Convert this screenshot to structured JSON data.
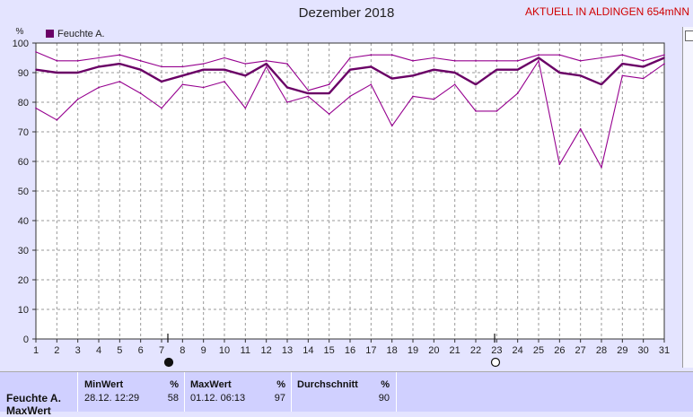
{
  "header": {
    "title": "Dezember 2018",
    "stamp": "AKTUELL IN ALDINGEN 654mNN"
  },
  "chart_data": {
    "type": "line",
    "title": "Dezember 2018",
    "ylabel": "%",
    "ylim": [
      0,
      100
    ],
    "yticks": [
      0,
      10,
      20,
      30,
      40,
      50,
      60,
      70,
      80,
      90,
      100
    ],
    "x": [
      1,
      2,
      3,
      4,
      5,
      6,
      7,
      8,
      9,
      10,
      11,
      12,
      13,
      14,
      15,
      16,
      17,
      18,
      19,
      20,
      21,
      22,
      23,
      24,
      25,
      26,
      27,
      28,
      29,
      30,
      31
    ],
    "xlim": [
      1,
      31
    ],
    "legend": {
      "label": "Feuchte A.",
      "color": "#6a0066",
      "position": "top-left"
    },
    "grid": true,
    "series": [
      {
        "name": "Feuchte A.",
        "kind": "mean",
        "color": "#6a0066",
        "values": [
          91,
          90,
          90,
          92,
          93,
          91,
          87,
          89,
          91,
          91,
          89,
          93,
          85,
          83,
          83,
          91,
          92,
          88,
          89,
          91,
          90,
          86,
          91,
          91,
          95,
          90,
          89,
          86,
          93,
          92,
          95
        ]
      },
      {
        "name": "Feuchte A.",
        "kind": "max",
        "color": "#96008f",
        "values": [
          97,
          94,
          94,
          95,
          96,
          94,
          92,
          92,
          93,
          95,
          93,
          94,
          93,
          84,
          86,
          95,
          96,
          96,
          94,
          95,
          94,
          94,
          94,
          94,
          96,
          96,
          94,
          95,
          96,
          94,
          96
        ]
      },
      {
        "name": "Feuchte A.",
        "kind": "min",
        "color": "#96008f",
        "values": [
          78,
          74,
          81,
          85,
          87,
          83,
          78,
          86,
          85,
          87,
          78,
          92,
          80,
          82,
          76,
          82,
          86,
          72,
          82,
          81,
          86,
          77,
          77,
          83,
          94,
          59,
          71,
          58,
          89,
          88,
          93
        ]
      }
    ],
    "moon_markers": [
      {
        "day": 7.3,
        "phase": "full"
      },
      {
        "day": 22.9,
        "phase": "new"
      }
    ]
  },
  "stats": {
    "row_label": "Feuchte A.",
    "row_label2": "MaxWert",
    "min": {
      "header": "MinWert",
      "unit": "%",
      "datetime": "28.12.  12:29",
      "value": "58"
    },
    "max": {
      "header": "MaxWert",
      "unit": "%",
      "datetime": "01.12.  06:13",
      "value": "97"
    },
    "avg": {
      "header": "Durchschnitt",
      "unit": "%",
      "value": "90"
    }
  }
}
